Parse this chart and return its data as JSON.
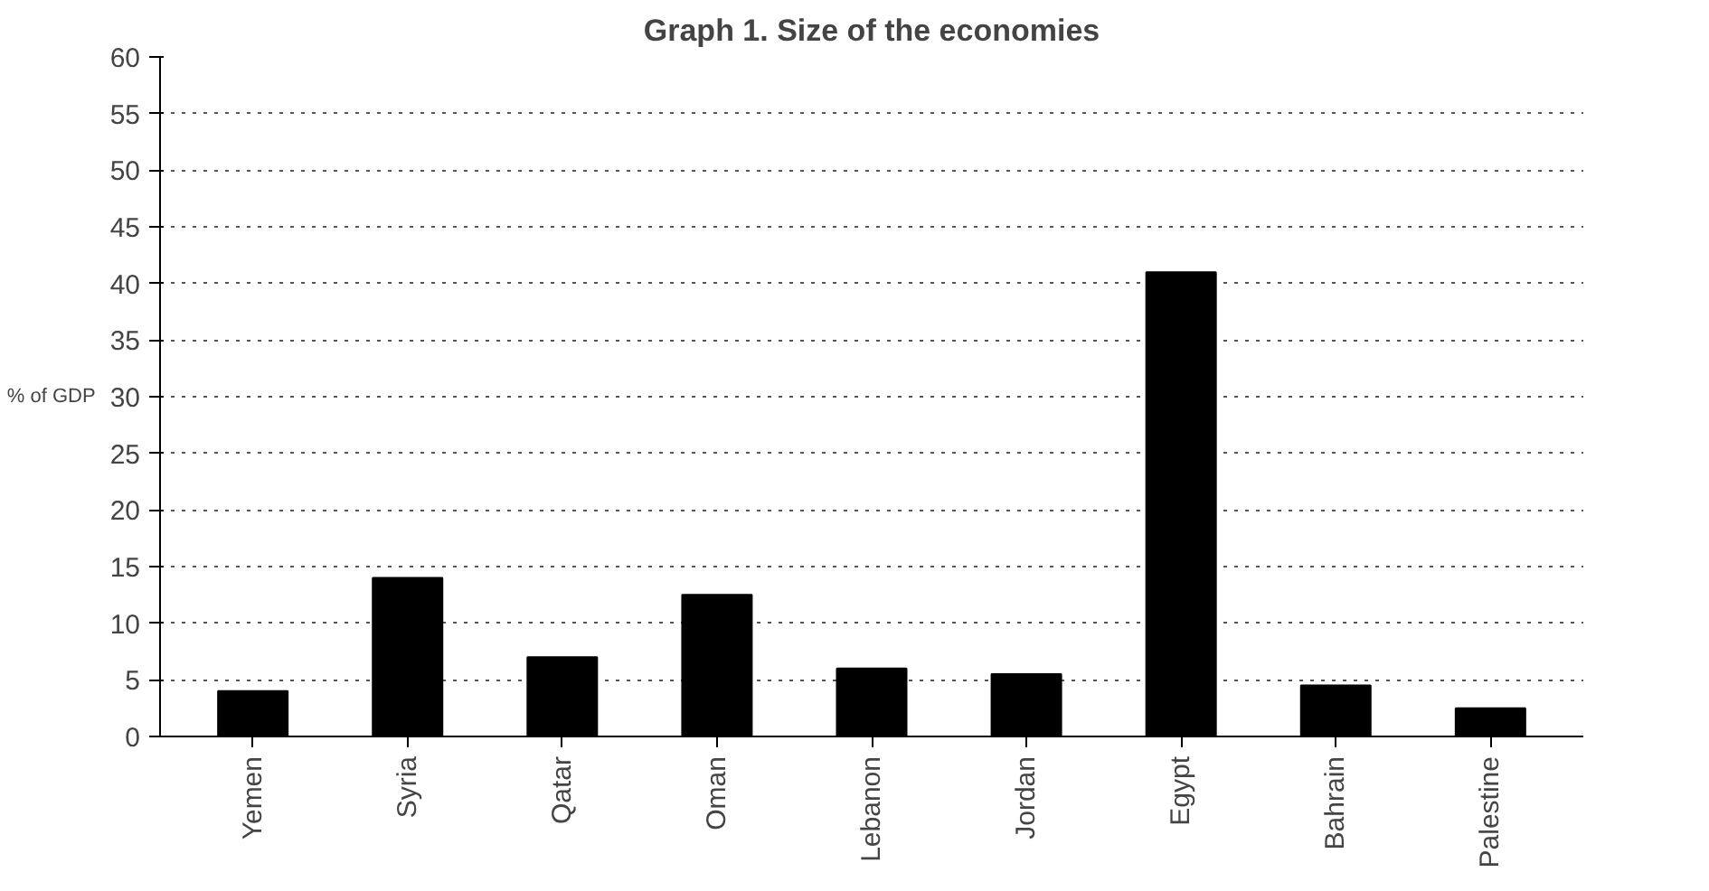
{
  "chart_data": {
    "type": "bar",
    "title": "Graph 1. Size of the economies",
    "ylabel": "% of GDP",
    "categories": [
      "Yemen",
      "Syria",
      "Qatar",
      "Oman",
      "Lebanon",
      "Jordan",
      "Egypt",
      "Bahrain",
      "Palestine"
    ],
    "values": [
      4,
      14,
      7,
      12.5,
      6,
      5.5,
      41,
      4.5,
      2.5
    ],
    "color": "#000000",
    "ylim": [
      0,
      60
    ],
    "yticks": [
      0,
      5,
      10,
      15,
      20,
      25,
      30,
      35,
      40,
      45,
      50,
      55,
      60
    ],
    "grid": "y"
  }
}
